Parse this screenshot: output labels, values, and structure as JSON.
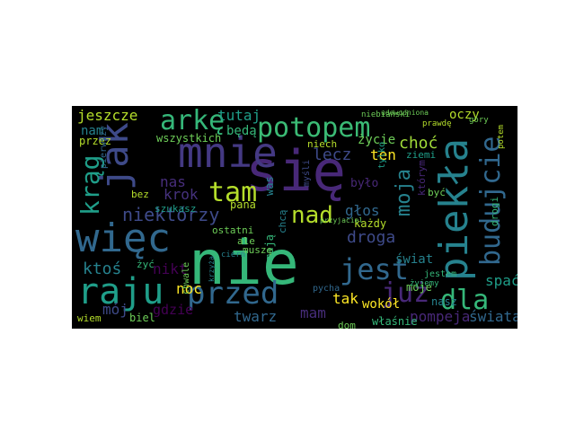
{
  "wordcloud": {
    "background": "#000000",
    "colormap": "viridis",
    "words": [
      {
        "text": "nie",
        "color": "#35b779"
      },
      {
        "text": "się",
        "color": "#482878"
      },
      {
        "text": "więc",
        "color": "#31688e"
      },
      {
        "text": "mnie",
        "color": "#443983"
      },
      {
        "text": "piekła",
        "color": "#26828e"
      },
      {
        "text": "jak",
        "color": "#3e4a89"
      },
      {
        "text": "raju",
        "color": "#1f9e89"
      },
      {
        "text": "przed",
        "color": "#31688e"
      },
      {
        "text": "potopem",
        "color": "#3bbb75"
      },
      {
        "text": "arkę",
        "color": "#35b779"
      },
      {
        "text": "tam",
        "color": "#b5de2b"
      },
      {
        "text": "jest",
        "color": "#31688e"
      },
      {
        "text": "już",
        "color": "#482878"
      },
      {
        "text": "dla",
        "color": "#35b779"
      },
      {
        "text": "budujcie",
        "color": "#31688e"
      },
      {
        "text": "krąg",
        "color": "#1f9e89"
      },
      {
        "text": "nad",
        "color": "#b5de2b"
      },
      {
        "text": "moja",
        "color": "#26828e"
      },
      {
        "text": "niektórzy",
        "color": "#3e4a89"
      },
      {
        "text": "jeszcze",
        "color": "#b5de2b"
      },
      {
        "text": "tutaj",
        "color": "#1f9e89"
      },
      {
        "text": "lecz",
        "color": "#3e4a89"
      },
      {
        "text": "choć",
        "color": "#a0da39"
      },
      {
        "text": "ten",
        "color": "#fde725"
      },
      {
        "text": "droga",
        "color": "#3e4a89"
      },
      {
        "text": "ktoś",
        "color": "#26828e"
      },
      {
        "text": "nikt",
        "color": "#440154"
      },
      {
        "text": "krok",
        "color": "#46327e"
      },
      {
        "text": "nas",
        "color": "#472d7b"
      },
      {
        "text": "noc",
        "color": "#fde725"
      },
      {
        "text": "mój",
        "color": "#3e4a89"
      },
      {
        "text": "gdzie",
        "color": "#440154"
      },
      {
        "text": "twarz",
        "color": "#31688e"
      },
      {
        "text": "mam",
        "color": "#472d7b"
      },
      {
        "text": "tak",
        "color": "#fde725"
      },
      {
        "text": "pompeja",
        "color": "#482878"
      },
      {
        "text": "świata",
        "color": "#31688e"
      },
      {
        "text": "spać",
        "color": "#1f9e89"
      },
      {
        "text": "głos",
        "color": "#31688e"
      },
      {
        "text": "każdy",
        "color": "#b5de2b"
      },
      {
        "text": "świat",
        "color": "#26828e"
      },
      {
        "text": "wokół",
        "color": "#fde725"
      },
      {
        "text": "moje",
        "color": "#6ece58"
      },
      {
        "text": "nasz",
        "color": "#26828e"
      },
      {
        "text": "życie",
        "color": "#6ece58"
      },
      {
        "text": "oczy",
        "color": "#b5de2b"
      },
      {
        "text": "było",
        "color": "#482878"
      },
      {
        "text": "nam",
        "color": "#26828e"
      },
      {
        "text": "wszystkich",
        "color": "#6ece58"
      },
      {
        "text": "będą",
        "color": "#35b779"
      },
      {
        "text": "przez",
        "color": "#b5de2b"
      },
      {
        "text": "szukasz",
        "color": "#1f9e89"
      },
      {
        "text": "pierwszy",
        "color": "#31688e"
      },
      {
        "text": "ostatni",
        "color": "#6ece58"
      },
      {
        "text": "pana",
        "color": "#b5de2b"
      },
      {
        "text": "chcą",
        "color": "#26828e"
      },
      {
        "text": "mają",
        "color": "#35b779"
      },
      {
        "text": "muszę",
        "color": "#6ece58"
      },
      {
        "text": "bez",
        "color": "#b5de2b"
      },
      {
        "text": "żyć",
        "color": "#35b779"
      },
      {
        "text": "biel",
        "color": "#6ece58"
      },
      {
        "text": "wiem",
        "color": "#b5de2b"
      },
      {
        "text": "dom",
        "color": "#6ece58"
      },
      {
        "text": "właśnie",
        "color": "#35b779"
      },
      {
        "text": "niech",
        "color": "#b5de2b"
      },
      {
        "text": "ziemi",
        "color": "#1f9e89"
      },
      {
        "text": "którym",
        "color": "#482878"
      },
      {
        "text": "być",
        "color": "#6ece58"
      },
      {
        "text": "drogi",
        "color": "#35b779"
      },
      {
        "text": "was",
        "color": "#26828e"
      },
      {
        "text": "niebiański",
        "color": "#6ece58"
      },
      {
        "text": "udowodniona",
        "color": "#6ece58"
      },
      {
        "text": "chwale",
        "color": "#6ece58"
      },
      {
        "text": "myśli",
        "color": "#3e4a89"
      },
      {
        "text": "ale",
        "color": "#6ece58"
      },
      {
        "text": "cierń",
        "color": "#26828e"
      },
      {
        "text": "jestem",
        "color": "#35b779"
      },
      {
        "text": "przyjaciel",
        "color": "#6ece58"
      },
      {
        "text": "tylko",
        "color": "#1f9e89"
      },
      {
        "text": "pycha",
        "color": "#31688e"
      },
      {
        "text": "góry",
        "color": "#6ece58"
      },
      {
        "text": "żyjemy",
        "color": "#35b779"
      },
      {
        "text": "krzyża",
        "color": "#26828e"
      },
      {
        "text": "prawdę",
        "color": "#b5de2b"
      },
      {
        "text": "potem",
        "color": "#b5de2b"
      }
    ]
  }
}
